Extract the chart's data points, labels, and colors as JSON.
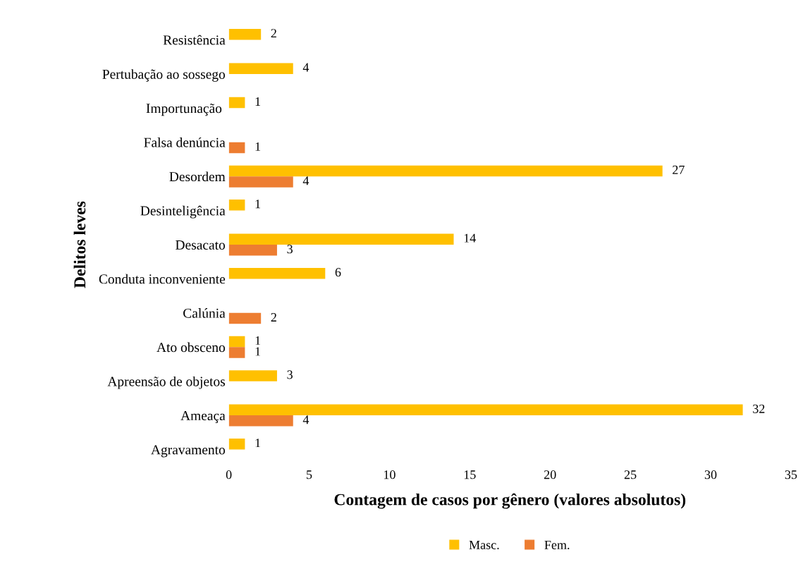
{
  "chart_data": {
    "type": "bar",
    "orientation": "horizontal",
    "xlabel": "Contagem de casos por gênero (valores absolutos)",
    "ylabel": "Delitos leves",
    "categories": [
      "Resistência",
      "Pertubação ao sossego",
      "Importunação ",
      "Falsa denúncia",
      "Desordem",
      "Desinteligência",
      "Desacato",
      "Conduta inconveniente",
      "Calúnia",
      "Ato obsceno",
      "Apreensão de objetos",
      "Ameaça",
      "Agravamento"
    ],
    "series": [
      {
        "name": "Masc.",
        "color": "#ffc000",
        "values": [
          2,
          4,
          1,
          null,
          27,
          1,
          14,
          6,
          null,
          1,
          3,
          32,
          1
        ]
      },
      {
        "name": "Fem.",
        "color": "#ed7d31",
        "values": [
          null,
          null,
          null,
          1,
          4,
          null,
          3,
          null,
          2,
          1,
          null,
          4,
          null
        ]
      }
    ],
    "xlim": [
      0,
      35
    ],
    "xticks": [
      0,
      5,
      10,
      15,
      20,
      25,
      30,
      35
    ],
    "data_labels": true,
    "legend": "bottom",
    "grid": false
  }
}
